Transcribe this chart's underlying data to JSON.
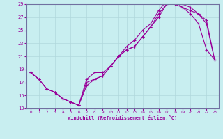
{
  "xlabel": "Windchill (Refroidissement éolien,°C)",
  "bg_color": "#c8eef0",
  "line_color": "#990099",
  "grid_color": "#b0d8dc",
  "spine_color": "#7070a0",
  "xlim": [
    -0.5,
    23.5
  ],
  "ylim": [
    13,
    29
  ],
  "xticks": [
    0,
    1,
    2,
    3,
    4,
    5,
    6,
    7,
    8,
    9,
    10,
    11,
    12,
    13,
    14,
    15,
    16,
    17,
    18,
    19,
    20,
    21,
    22,
    23
  ],
  "yticks": [
    13,
    15,
    17,
    19,
    21,
    23,
    25,
    27,
    29
  ],
  "series1_x": [
    0,
    1,
    2,
    3,
    4,
    5,
    6,
    7,
    8,
    9,
    10,
    11,
    12,
    13,
    14,
    15,
    16,
    17,
    18,
    19,
    20,
    21,
    22,
    23
  ],
  "series1_y": [
    18.5,
    17.5,
    16.0,
    15.5,
    14.5,
    14.0,
    13.5,
    17.0,
    17.5,
    18.0,
    19.5,
    21.0,
    22.0,
    22.5,
    24.0,
    25.5,
    27.0,
    29.0,
    29.0,
    28.5,
    27.5,
    26.0,
    22.0,
    20.5
  ],
  "series2_x": [
    0,
    1,
    2,
    3,
    4,
    5,
    6,
    7,
    8,
    9,
    10,
    11,
    12,
    13,
    14,
    15,
    16,
    17,
    18,
    19,
    20,
    21,
    22,
    23
  ],
  "series2_y": [
    18.5,
    17.5,
    16.0,
    15.5,
    14.5,
    14.0,
    13.5,
    16.5,
    17.5,
    18.0,
    19.5,
    21.0,
    22.0,
    22.5,
    24.0,
    25.5,
    27.5,
    29.0,
    29.5,
    28.5,
    28.0,
    27.5,
    26.5,
    20.5
  ],
  "series3_x": [
    0,
    1,
    2,
    3,
    4,
    5,
    6,
    7,
    8,
    9,
    10,
    11,
    12,
    13,
    14,
    15,
    16,
    17,
    18,
    19,
    20,
    21,
    22,
    23
  ],
  "series3_y": [
    18.5,
    17.5,
    16.0,
    15.5,
    14.5,
    14.0,
    13.5,
    17.5,
    18.5,
    18.5,
    19.5,
    21.0,
    22.5,
    23.5,
    25.0,
    26.0,
    28.0,
    29.5,
    29.5,
    29.0,
    28.5,
    27.5,
    26.0,
    20.5
  ]
}
